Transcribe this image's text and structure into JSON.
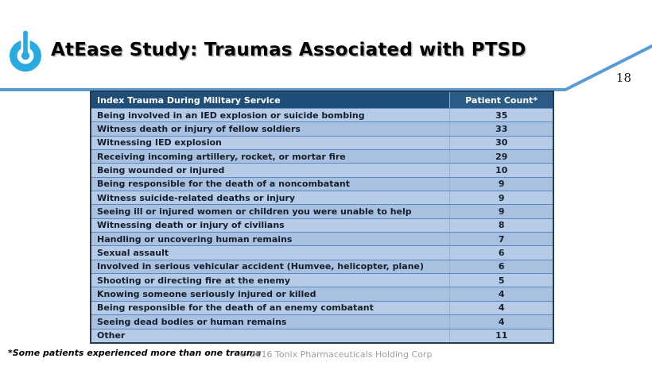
{
  "slide": {
    "title": "AtEase Study: Traumas Associated with PTSD",
    "page_number": "18",
    "footnote": "*Some patients experienced more than one trauma",
    "copyright": "© 2016 Tonix Pharmaceuticals Holding Corp"
  },
  "logo": {
    "icon": "power-button-icon",
    "color": "#29ABE2"
  },
  "colors": {
    "accent_line": "#5B9BD5",
    "header_bg": "#1F4E79",
    "header_bg_right": "#2B5C86",
    "row_light": "#B5CBE8",
    "row_dark": "#A9C1E0",
    "row_line": "#5B88C0",
    "table_border": "#2B3B4E"
  },
  "table": {
    "columns": [
      "Index Trauma During Military Service",
      "Patient Count*"
    ],
    "rows": [
      [
        "Being involved in an IED explosion or suicide bombing",
        "35"
      ],
      [
        "Witness death or injury of fellow soldiers",
        "33"
      ],
      [
        "Witnessing IED explosion",
        "30"
      ],
      [
        "Receiving incoming artillery, rocket, or mortar fire",
        "29"
      ],
      [
        "Being wounded or injured",
        "10"
      ],
      [
        "Being responsible for the death of a noncombatant",
        "9"
      ],
      [
        "Witness suicide-related deaths or injury",
        "9"
      ],
      [
        "Seeing ill or injured women or children you were unable to help",
        "9"
      ],
      [
        "Witnessing death or injury of civilians",
        "8"
      ],
      [
        "Handling or uncovering human remains",
        "7"
      ],
      [
        "Sexual assault",
        "6"
      ],
      [
        "Involved in serious vehicular accident (Humvee, helicopter, plane)",
        "6"
      ],
      [
        "Shooting or directing fire at the enemy",
        "5"
      ],
      [
        "Knowing someone seriously injured or killed",
        "4"
      ],
      [
        "Being responsible for the death of an enemy combatant",
        "4"
      ],
      [
        "Seeing dead bodies or human remains",
        "4"
      ],
      [
        "Other",
        "11"
      ]
    ]
  }
}
